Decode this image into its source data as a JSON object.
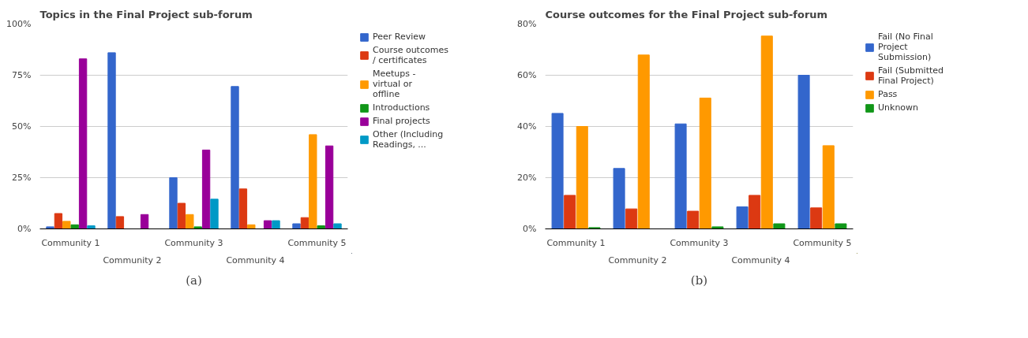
{
  "chart_data": [
    {
      "type": "bar",
      "title": "Topics in the Final Project sub-forum",
      "categories": [
        "Community 1",
        "Community 2",
        "Community 3",
        "Community 4",
        "Community 5"
      ],
      "series": [
        {
          "name": "Peer Review",
          "color": "#3366cc",
          "values": [
            1,
            86,
            25,
            69.5,
            2.5
          ]
        },
        {
          "name": "Course outcomes / certificates",
          "color": "#dc3912",
          "values": [
            7.5,
            6,
            12.5,
            19.5,
            5.5
          ]
        },
        {
          "name": "Meetups - virtual or offline",
          "color": "#ff9900",
          "values": [
            3.7,
            0,
            7,
            2,
            46
          ]
        },
        {
          "name": "Introductions",
          "color": "#109618",
          "values": [
            2,
            0,
            1,
            0,
            1.5
          ]
        },
        {
          "name": "Final projects",
          "color": "#990099",
          "values": [
            83,
            7,
            38.5,
            4,
            40.5
          ]
        },
        {
          "name": "Other (Including Readings, ...",
          "color": "#0099c6",
          "values": [
            1.5,
            0,
            14.5,
            4,
            2.5
          ]
        }
      ],
      "ylim": [
        0,
        100
      ],
      "yticks": [
        {
          "value": 0,
          "label": "0%"
        },
        {
          "value": 25,
          "label": "25%"
        },
        {
          "value": 50,
          "label": "50%"
        },
        {
          "value": 75,
          "label": "75%"
        },
        {
          "value": 100,
          "label": "100%"
        }
      ],
      "grid": "y",
      "legend": "right",
      "annotations": [
        "(a)"
      ]
    },
    {
      "type": "bar",
      "title": "Course outcomes for the Final Project sub-forum",
      "categories": [
        "Community 1",
        "Community 2",
        "Community 3",
        "Community 4",
        "Community 5"
      ],
      "series": [
        {
          "name": "Fail (No Final Project Submission)",
          "color": "#3366cc",
          "values": [
            45.1,
            23.6,
            41,
            8.6,
            60
          ]
        },
        {
          "name": "Fail (Submitted Final Project)",
          "color": "#dc3912",
          "values": [
            13.1,
            7.8,
            6.9,
            13.1,
            8.2
          ]
        },
        {
          "name": "Pass",
          "color": "#ff9900",
          "values": [
            40,
            67.9,
            51.1,
            75.3,
            32.5
          ]
        },
        {
          "name": "Unknown",
          "color": "#109618",
          "values": [
            0.5,
            0,
            0.8,
            2,
            2
          ]
        }
      ],
      "ylim": [
        0,
        80
      ],
      "yticks": [
        {
          "value": 0,
          "label": "0%"
        },
        {
          "value": 20,
          "label": "20%"
        },
        {
          "value": 40,
          "label": "40%"
        },
        {
          "value": 60,
          "label": "60%"
        },
        {
          "value": 80,
          "label": "80%"
        }
      ],
      "grid": "y",
      "legend": "right",
      "annotations": [
        "(b)"
      ]
    }
  ]
}
